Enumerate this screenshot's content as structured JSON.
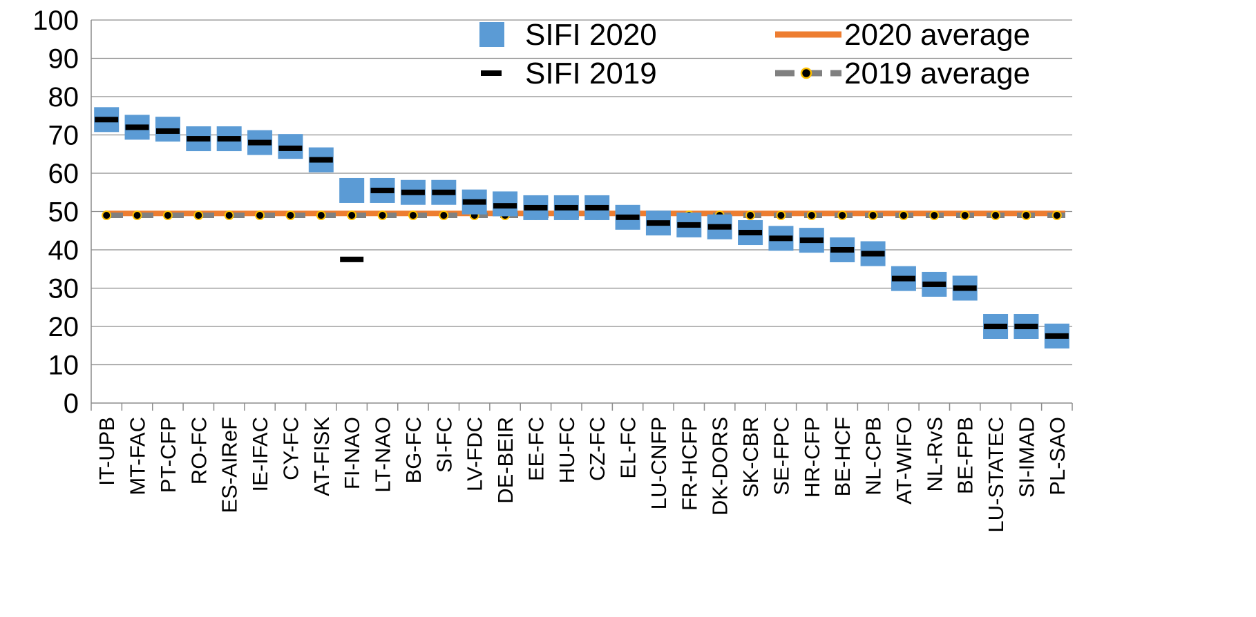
{
  "chart_data": {
    "type": "scatter",
    "title": "",
    "xlabel": "",
    "ylabel": "",
    "ylim": [
      0,
      100
    ],
    "yticks": [
      0,
      10,
      20,
      30,
      40,
      50,
      60,
      70,
      80,
      90,
      100
    ],
    "grid": "horizontal",
    "legend_position": "top-right",
    "categories": [
      "IT-UPB",
      "MT-FAC",
      "PT-CFP",
      "RO-FC",
      "ES-AIReF",
      "IE-IFAC",
      "CY-FC",
      "AT-FISK",
      "FI-NAO",
      "LT-NAO",
      "BG-FC",
      "SI-FC",
      "LV-FDC",
      "DE-BEIR",
      "EE-FC",
      "HU-FC",
      "CZ-FC",
      "EL-FC",
      "LU-CNFP",
      "FR-HCFP",
      "DK-DORS",
      "SK-CBR",
      "SE-FPC",
      "HR-CFP",
      "BE-HCF",
      "NL-CPB",
      "AT-WIFO",
      "NL-RvS",
      "BE-FPB",
      "LU-STATEC",
      "SI-IMAD",
      "PL-SAO"
    ],
    "series": [
      {
        "name": "SIFI 2020",
        "marker": "square",
        "color": "#5B9BD5",
        "values": [
          74,
          72,
          71.5,
          69,
          69,
          68,
          67,
          63.5,
          55.5,
          55.5,
          55,
          55,
          52.5,
          52,
          51,
          51,
          51,
          48.5,
          47,
          46.5,
          46,
          44.5,
          43,
          42.5,
          40,
          39,
          32.5,
          31,
          30,
          20,
          20,
          17.5
        ]
      },
      {
        "name": "SIFI 2019",
        "marker": "dash",
        "color": "#000000",
        "values": [
          74,
          72,
          71,
          69,
          69,
          68,
          66.5,
          63.5,
          37.5,
          55.5,
          55,
          55,
          52.5,
          51.5,
          51,
          51,
          51,
          48.5,
          47,
          46.5,
          46,
          44.5,
          43,
          42.5,
          40,
          39,
          32.5,
          31,
          30,
          20,
          20,
          17.5
        ]
      },
      {
        "name": "2020 average",
        "type": "line",
        "color": "#ED7D31",
        "value": 49.5
      },
      {
        "name": "2019 average",
        "type": "line",
        "style": "dashed-with-dots",
        "color": "#808080",
        "dot_color": "#000000",
        "dot_edge_color": "#FFC000",
        "value": 49
      }
    ]
  }
}
